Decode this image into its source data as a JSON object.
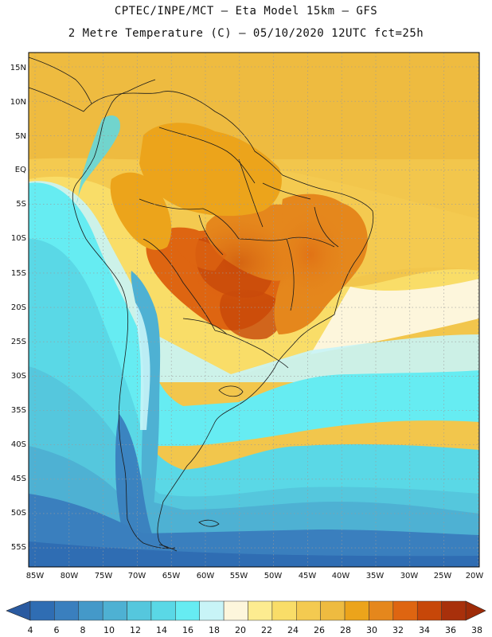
{
  "header": {
    "line1": "CPTEC/INPE/MCT –  Eta Model 15km – GFS",
    "line2": "2 Metre Temperature (C) – 05/10/2020 12UTC fct=25h"
  },
  "map": {
    "lat_labels": [
      "15N",
      "10N",
      "5N",
      "EQ",
      "5S",
      "10S",
      "15S",
      "20S",
      "25S",
      "30S",
      "35S",
      "40S",
      "45S",
      "50S",
      "55S"
    ],
    "lon_labels": [
      "85W",
      "80W",
      "75W",
      "70W",
      "65W",
      "60W",
      "55W",
      "50W",
      "45W",
      "40W",
      "35W",
      "30W",
      "25W",
      "20W"
    ]
  },
  "colorbar": {
    "labels": [
      "4",
      "6",
      "8",
      "10",
      "12",
      "14",
      "16",
      "18",
      "20",
      "22",
      "24",
      "26",
      "28",
      "30",
      "32",
      "34",
      "36",
      "38"
    ],
    "colors": [
      "#2f6db3",
      "#3a7fbe",
      "#4499c9",
      "#4eb1d3",
      "#55c7dd",
      "#5ad8e6",
      "#66ecf2",
      "#c8f4f7",
      "#fdf6dc",
      "#fdec90",
      "#f9dd68",
      "#f4ca50",
      "#eebb40",
      "#eca41b",
      "#e5871c",
      "#de6511",
      "#c74709",
      "#a8300b"
    ]
  }
}
